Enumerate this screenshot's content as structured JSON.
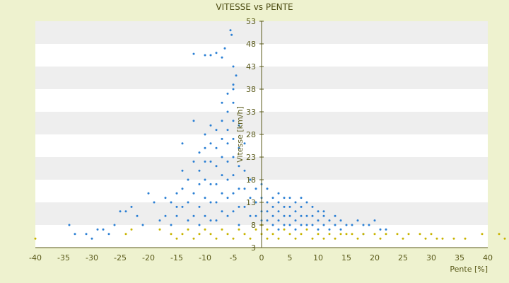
{
  "chart_data": {
    "type": "scatter",
    "title": "VITESSE vs PENTE",
    "xlabel": "Pente [%]",
    "ylabel": "Vitesse [km/h]",
    "xlim": [
      -40,
      40
    ],
    "ylim": [
      3,
      53
    ],
    "x_ticks": [
      -40,
      -35,
      -30,
      -25,
      -20,
      -15,
      -10,
      -5,
      0,
      5,
      10,
      15,
      20,
      25,
      30,
      35,
      40
    ],
    "y_ticks": [
      3,
      8,
      13,
      18,
      23,
      28,
      33,
      38,
      43,
      48,
      53
    ],
    "grid": "horizontal bands",
    "legend": "none",
    "colors": {
      "background": "#eef2cf",
      "band_light": "#ffffff",
      "band_dark": "#eeeeee",
      "axis": "#5a5a1a",
      "series_blue": "#2a7fd4",
      "series_yellow": "#c8b400"
    },
    "series": [
      {
        "color": "#2a7fd4",
        "points": [
          [
            -34,
            8
          ],
          [
            -33,
            6
          ],
          [
            -31,
            6
          ],
          [
            -30,
            5
          ],
          [
            -29,
            7
          ],
          [
            -28,
            7
          ],
          [
            -27,
            6
          ],
          [
            -26,
            8
          ],
          [
            -25,
            11
          ],
          [
            -24,
            11
          ],
          [
            -23,
            12
          ],
          [
            -22,
            10
          ],
          [
            -21,
            8
          ],
          [
            -20,
            15
          ],
          [
            -19,
            13
          ],
          [
            -18,
            9
          ],
          [
            -17,
            14
          ],
          [
            -17,
            10
          ],
          [
            -16,
            13
          ],
          [
            -16,
            8
          ],
          [
            -15,
            15
          ],
          [
            -15,
            12
          ],
          [
            -15,
            10
          ],
          [
            -14,
            26
          ],
          [
            -14,
            20
          ],
          [
            -14,
            16
          ],
          [
            -14,
            12
          ],
          [
            -13,
            18
          ],
          [
            -13,
            13
          ],
          [
            -13,
            9
          ],
          [
            -12,
            31
          ],
          [
            -12,
            22
          ],
          [
            -12,
            15
          ],
          [
            -12,
            10
          ],
          [
            -11,
            24
          ],
          [
            -11,
            20
          ],
          [
            -11,
            17
          ],
          [
            -11,
            12
          ],
          [
            -11,
            8
          ],
          [
            -10,
            28
          ],
          [
            -10,
            25
          ],
          [
            -10,
            22
          ],
          [
            -10,
            18
          ],
          [
            -10,
            14
          ],
          [
            -10,
            10
          ],
          [
            -9,
            30
          ],
          [
            -9,
            26
          ],
          [
            -9,
            22
          ],
          [
            -9,
            17
          ],
          [
            -9,
            13
          ],
          [
            -9,
            9
          ],
          [
            -8,
            29
          ],
          [
            -8,
            25
          ],
          [
            -8,
            21
          ],
          [
            -8,
            17
          ],
          [
            -8,
            13
          ],
          [
            -8,
            9
          ],
          [
            -7,
            31
          ],
          [
            -7,
            27
          ],
          [
            -7,
            23
          ],
          [
            -7,
            19
          ],
          [
            -7,
            15
          ],
          [
            -7,
            11
          ],
          [
            -6,
            33
          ],
          [
            -6,
            29
          ],
          [
            -6,
            26
          ],
          [
            -6,
            22
          ],
          [
            -6,
            18
          ],
          [
            -6,
            14
          ],
          [
            -6,
            10
          ],
          [
            -5,
            38
          ],
          [
            -5,
            35
          ],
          [
            -5,
            31
          ],
          [
            -5,
            27
          ],
          [
            -5,
            23
          ],
          [
            -5,
            19
          ],
          [
            -5,
            15
          ],
          [
            -5,
            11
          ],
          [
            -4,
            30
          ],
          [
            -4,
            25
          ],
          [
            -4,
            21
          ],
          [
            -4,
            16
          ],
          [
            -4,
            12
          ],
          [
            -4,
            8
          ],
          [
            -3,
            26
          ],
          [
            -3,
            20
          ],
          [
            -3,
            16
          ],
          [
            -3,
            12
          ],
          [
            -2,
            18
          ],
          [
            -2,
            14
          ],
          [
            -2,
            10
          ],
          [
            -1,
            16
          ],
          [
            -1,
            13
          ],
          [
            -1,
            10
          ],
          [
            0,
            17
          ],
          [
            0,
            14
          ],
          [
            0,
            11
          ],
          [
            0,
            9
          ],
          [
            -5.5,
            51
          ],
          [
            -5.3,
            50
          ],
          [
            -6.5,
            47
          ],
          [
            -7,
            45
          ],
          [
            -8,
            46
          ],
          [
            -9,
            45.5
          ],
          [
            -10,
            45.5
          ],
          [
            -12,
            45.8
          ],
          [
            -5,
            43
          ],
          [
            -4.5,
            41
          ],
          [
            -5,
            39
          ],
          [
            -6,
            37
          ],
          [
            -7,
            35
          ],
          [
            1,
            16
          ],
          [
            1,
            13
          ],
          [
            1,
            11
          ],
          [
            1,
            9
          ],
          [
            2,
            14
          ],
          [
            2,
            12
          ],
          [
            2,
            10
          ],
          [
            2,
            8
          ],
          [
            3,
            13
          ],
          [
            3,
            11
          ],
          [
            3,
            9
          ],
          [
            3,
            7
          ],
          [
            4,
            14
          ],
          [
            4,
            12
          ],
          [
            4,
            10
          ],
          [
            4,
            8
          ],
          [
            5,
            14
          ],
          [
            5,
            12
          ],
          [
            5,
            10
          ],
          [
            5,
            8
          ],
          [
            6,
            13
          ],
          [
            6,
            11
          ],
          [
            6,
            9
          ],
          [
            6,
            7
          ],
          [
            7,
            12
          ],
          [
            7,
            10
          ],
          [
            7,
            8
          ],
          [
            8,
            13
          ],
          [
            8,
            10
          ],
          [
            8,
            8
          ],
          [
            9,
            12
          ],
          [
            9,
            10
          ],
          [
            9,
            8
          ],
          [
            10,
            11
          ],
          [
            10,
            9
          ],
          [
            10,
            7
          ],
          [
            11,
            10
          ],
          [
            11,
            8
          ],
          [
            12,
            9
          ],
          [
            12,
            7
          ],
          [
            13,
            10
          ],
          [
            13,
            8
          ],
          [
            14,
            9
          ],
          [
            15,
            8
          ],
          [
            16,
            8
          ],
          [
            17,
            9
          ],
          [
            18,
            8
          ],
          [
            19,
            8
          ],
          [
            20,
            9
          ],
          [
            21,
            7
          ],
          [
            22,
            7
          ],
          [
            18,
            6
          ],
          [
            14,
            7
          ],
          [
            11,
            11
          ],
          [
            7,
            14
          ],
          [
            3,
            15
          ]
        ]
      },
      {
        "color": "#c8b400",
        "points": [
          [
            -40,
            5
          ],
          [
            -24,
            6
          ],
          [
            -23,
            7
          ],
          [
            -18,
            7
          ],
          [
            -16,
            6
          ],
          [
            -15,
            5
          ],
          [
            -14,
            6
          ],
          [
            -13,
            7
          ],
          [
            -12,
            5
          ],
          [
            -11,
            6
          ],
          [
            -10,
            7
          ],
          [
            -9,
            6
          ],
          [
            -8,
            5
          ],
          [
            -7,
            7
          ],
          [
            -6,
            6
          ],
          [
            -5,
            5
          ],
          [
            -4,
            7
          ],
          [
            -3,
            6
          ],
          [
            -2,
            5
          ],
          [
            -1,
            7
          ],
          [
            0,
            6
          ],
          [
            0,
            8
          ],
          [
            1,
            5
          ],
          [
            1,
            7
          ],
          [
            2,
            6
          ],
          [
            3,
            5
          ],
          [
            4,
            7
          ],
          [
            5,
            6
          ],
          [
            6,
            5
          ],
          [
            7,
            6
          ],
          [
            8,
            7
          ],
          [
            9,
            5
          ],
          [
            10,
            6
          ],
          [
            11,
            5
          ],
          [
            12,
            6
          ],
          [
            13,
            5
          ],
          [
            14,
            6
          ],
          [
            15,
            6
          ],
          [
            16,
            6
          ],
          [
            17,
            5
          ],
          [
            18,
            6
          ],
          [
            20,
            6
          ],
          [
            21,
            5
          ],
          [
            22,
            6
          ],
          [
            24,
            6
          ],
          [
            25,
            5
          ],
          [
            26,
            6
          ],
          [
            28,
            6
          ],
          [
            29,
            5
          ],
          [
            30,
            6
          ],
          [
            31,
            5
          ],
          [
            32,
            5
          ],
          [
            34,
            5
          ],
          [
            36,
            5
          ],
          [
            39,
            6
          ],
          [
            42,
            6
          ],
          [
            43,
            5
          ]
        ]
      }
    ]
  }
}
